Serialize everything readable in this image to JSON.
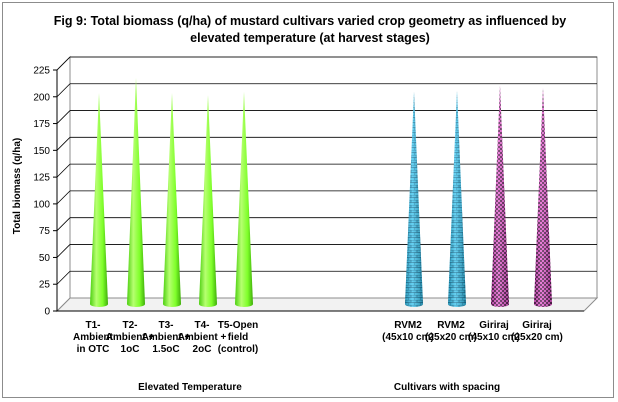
{
  "chart_data": {
    "type": "bar",
    "shape": "cone",
    "title": "Fig 9: Total biomass (q/ha) of mustard cultivars varied crop geometry  as influenced by elevated temperature (at harvest stages)",
    "ylabel": "Total biomass (q/ha)",
    "ylim": [
      0,
      225
    ],
    "yticks": [
      0,
      25,
      50,
      75,
      100,
      125,
      150,
      175,
      200,
      225
    ],
    "grid": true,
    "groups": [
      {
        "label": "Elevated Temperature",
        "color": "#7fff2a",
        "pattern": "solid",
        "categories": [
          [
            "T1-",
            "Ambient",
            "in OTC"
          ],
          [
            "T2-",
            "Ambient +",
            "1oC"
          ],
          [
            "T3-",
            "Ambient +",
            "1.5oC"
          ],
          [
            "T4-",
            "Ambient +",
            "2oC"
          ],
          [
            "T5-Open",
            "field",
            "(control)"
          ]
        ],
        "values": [
          197,
          211,
          197,
          195,
          198
        ]
      },
      {
        "label": "Cultivars with spacing",
        "color": "#2ab6e6",
        "pattern": "mixed",
        "categories": [
          [
            "RVM2",
            "(45x10 cm)"
          ],
          [
            "RVM2",
            "(25x20 cm)"
          ],
          [
            "Giriraj",
            "(45x10 cm)"
          ],
          [
            "Giriraj",
            "(25x20 cm)"
          ]
        ],
        "values": [
          198,
          199,
          204,
          202
        ]
      }
    ]
  }
}
